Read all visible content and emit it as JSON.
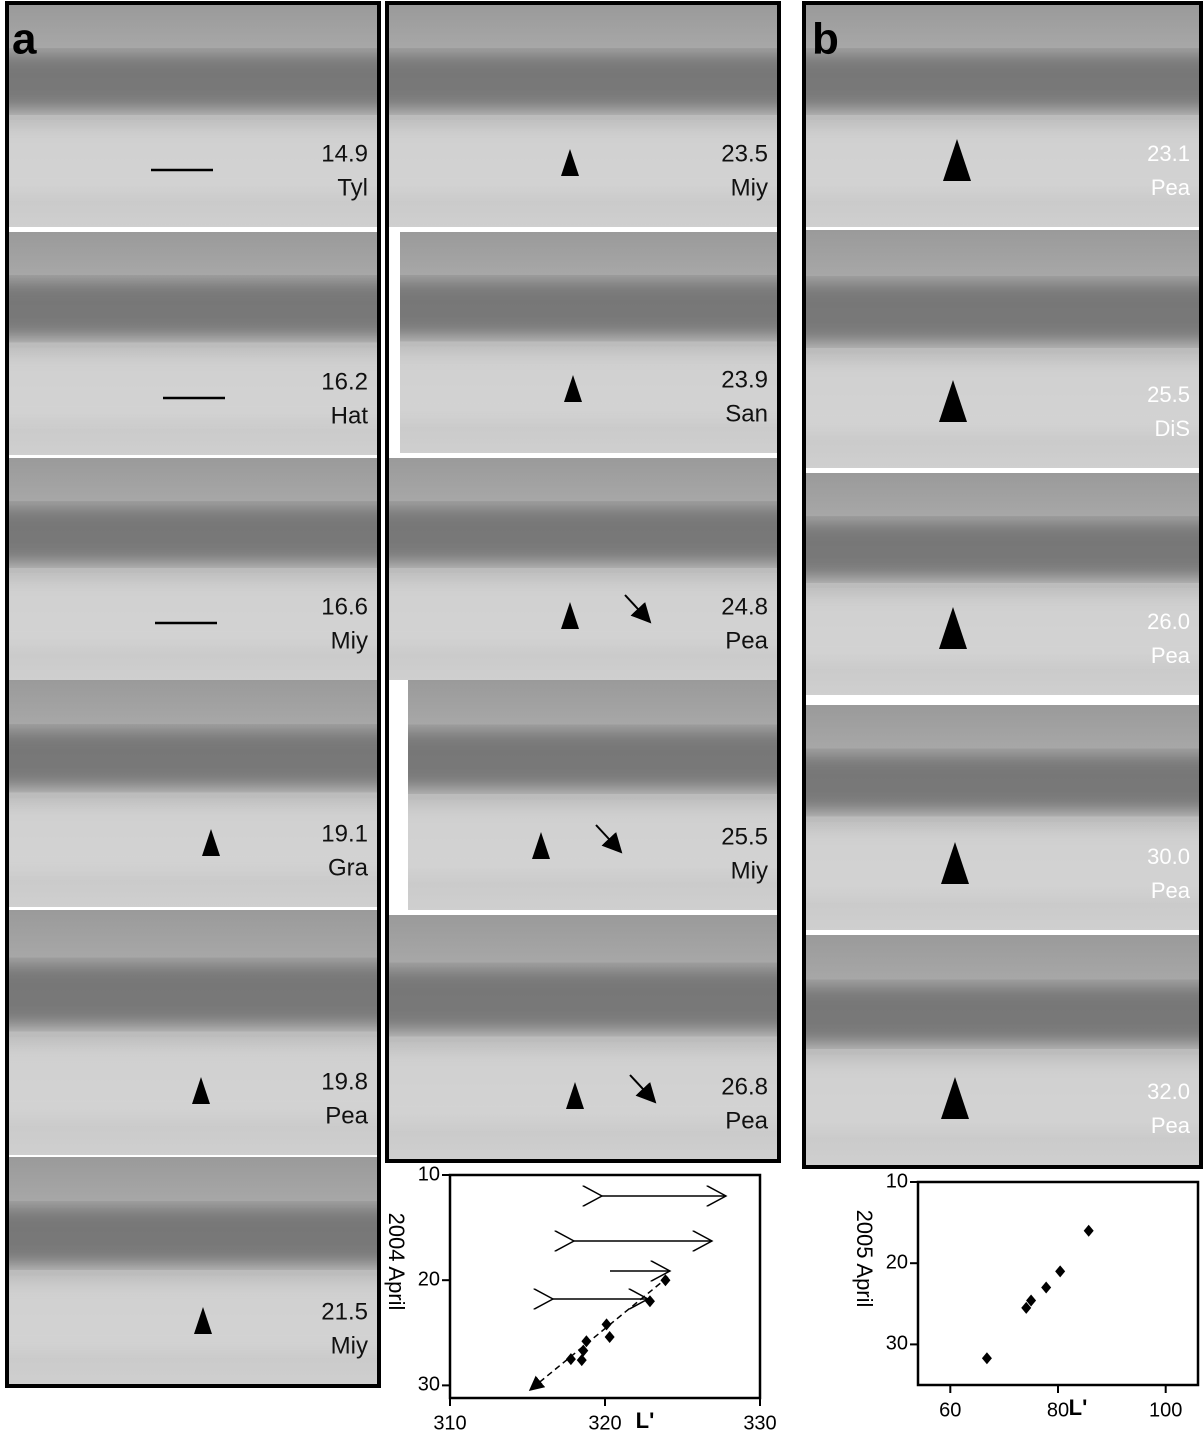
{
  "figure": {
    "panels": [
      {
        "label": "a",
        "frames": [
          {
            "date": "14.9",
            "observer": "Tyl"
          },
          {
            "date": "16.2",
            "observer": "Hat"
          },
          {
            "date": "16.6",
            "observer": "Miy"
          },
          {
            "date": "19.1",
            "observer": "Gra"
          },
          {
            "date": "19.8",
            "observer": "Pea"
          },
          {
            "date": "21.5",
            "observer": "Miy"
          },
          {
            "date": "23.5",
            "observer": "Miy"
          },
          {
            "date": "23.9",
            "observer": "San"
          },
          {
            "date": "24.8",
            "observer": "Pea"
          },
          {
            "date": "25.5",
            "observer": "Miy"
          },
          {
            "date": "26.8",
            "observer": "Pea"
          }
        ]
      },
      {
        "label": "b",
        "frames": [
          {
            "date": "23.1",
            "observer": "Pea"
          },
          {
            "date": "25.5",
            "observer": "DiS"
          },
          {
            "date": "26.0",
            "observer": "Pea"
          },
          {
            "date": "30.0",
            "observer": "Pea"
          },
          {
            "date": "32.0",
            "observer": "Pea"
          }
        ]
      }
    ]
  },
  "chart_data": [
    {
      "type": "scatter",
      "ylabel": "2004 April",
      "xlabel": "L'",
      "xlim": [
        310,
        330
      ],
      "ylim": [
        10,
        31.2
      ],
      "y_inverted": true,
      "xticks": [
        310,
        320,
        330
      ],
      "yticks": [
        10,
        20,
        30
      ],
      "color": "#000000",
      "x": [
        323.9,
        322.9,
        320.1,
        320.3,
        318.8,
        318.6,
        317.8,
        318.5
      ],
      "values": [
        20,
        22,
        24.2,
        25.4,
        25.8,
        26.7,
        27.5,
        27.6
      ]
    },
    {
      "type": "scatter",
      "ylabel": "2005 April",
      "xlabel": "L'",
      "xlim": [
        54,
        106
      ],
      "ylim": [
        10,
        35
      ],
      "y_inverted": true,
      "xticks": [
        60,
        80,
        100
      ],
      "yticks": [
        10,
        20,
        30
      ],
      "color": "#000000",
      "x": [
        85.7,
        80.4,
        77.8,
        75,
        74.1,
        66.8
      ],
      "values": [
        16,
        21,
        23,
        24.6,
        25.5,
        31.7
      ]
    }
  ]
}
